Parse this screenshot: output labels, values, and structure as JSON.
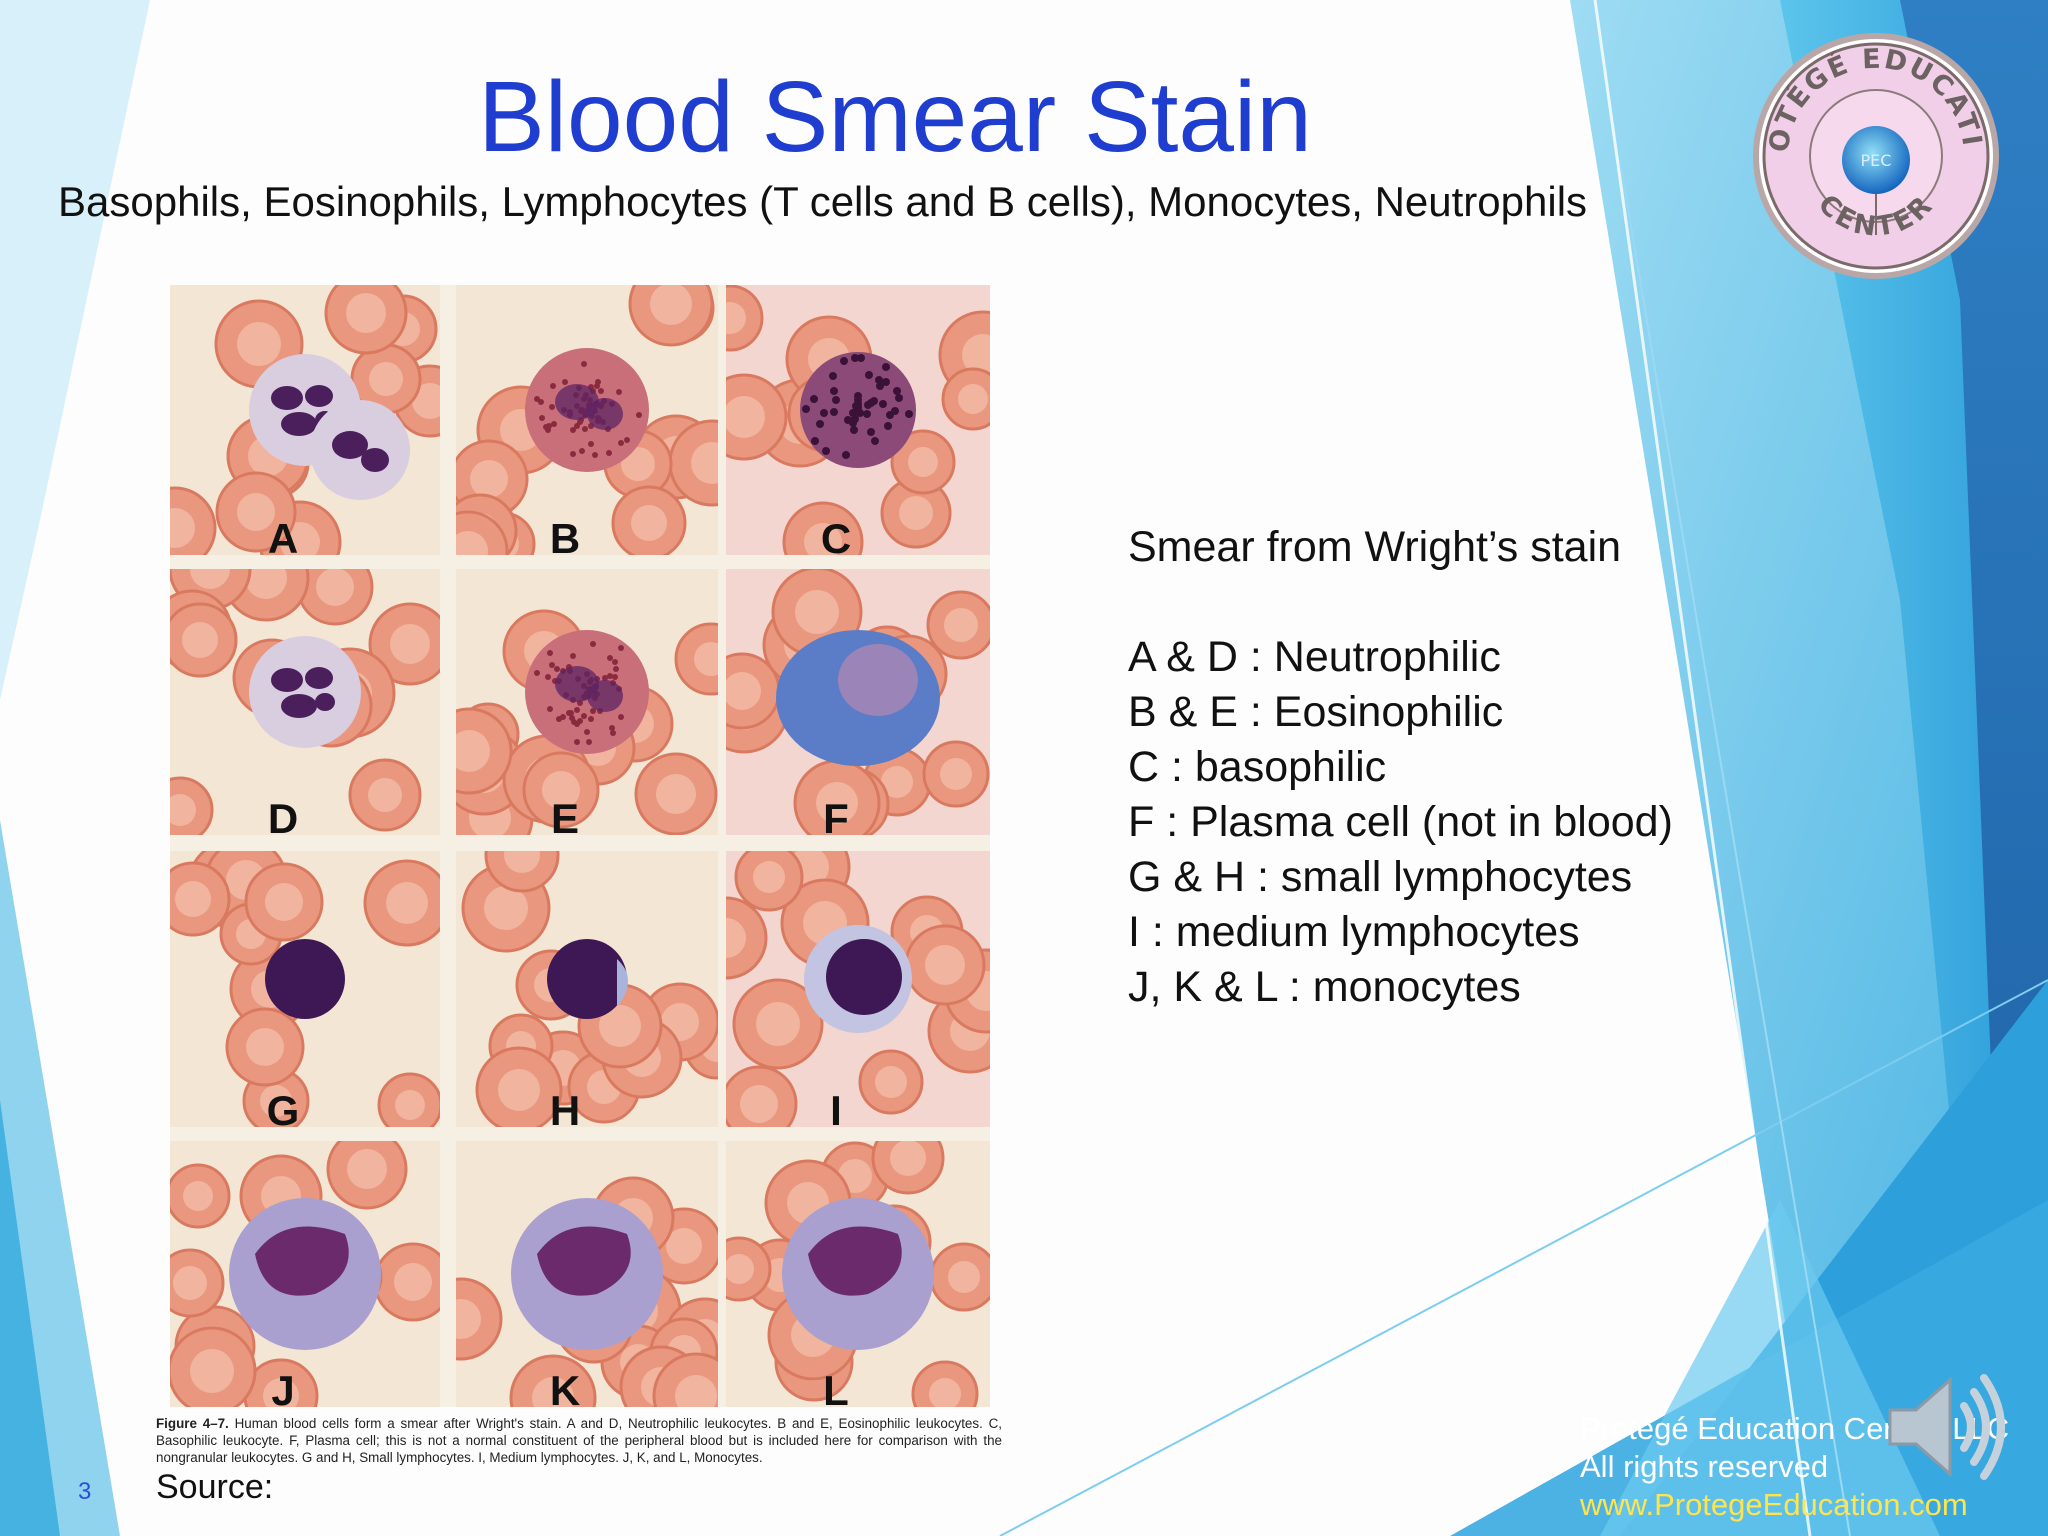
{
  "slide": {
    "title": "Blood Smear Stain",
    "subtitle": "Basophils, Eosinophils, Lymphocytes (T cells and B cells), Monocytes, Neutrophils",
    "page_number": "3",
    "source_label": "Source:"
  },
  "logo": {
    "top_text": "PROTÉGÉ EDUCATION",
    "bottom_text": "CENTER",
    "center_text": "PEC"
  },
  "figure": {
    "panels": [
      {
        "letter": "A"
      },
      {
        "letter": "B"
      },
      {
        "letter": "C"
      },
      {
        "letter": "D"
      },
      {
        "letter": "E"
      },
      {
        "letter": "F"
      },
      {
        "letter": "G"
      },
      {
        "letter": "H"
      },
      {
        "letter": "I"
      },
      {
        "letter": "J"
      },
      {
        "letter": "K"
      },
      {
        "letter": "L"
      }
    ],
    "caption_label": "Figure 4–7.",
    "caption": "Human blood cells form a smear after Wright's stain. A and D, Neutrophilic leukocytes. B and E, Eosinophilic leukocytes. C, Basophilic leukocyte. F, Plasma cell; this is not a normal constituent of the peripheral blood but is included here for comparison with the nongranular leukocytes. G and H, Small lymphocytes. I, Medium lymphocytes. J, K, and L, Monocytes."
  },
  "legend": {
    "heading": "Smear from Wright’s stain",
    "items": [
      "A & D : Neutrophilic",
      "B & E : Eosinophilic",
      "C : basophilic",
      "F : Plasma cell (not in blood)",
      "G & H : small lymphocytes",
      "I : medium lymphocytes",
      "J, K & L : monocytes"
    ]
  },
  "footer": {
    "company": "Protégé Education Center, LLC",
    "rights": "All rights reserved",
    "url": "www.ProtegeEducation.com"
  },
  "icons": {
    "speaker": "speaker-icon",
    "logo": "pec-logo"
  },
  "colors": {
    "title": "#1f3ecf",
    "footer_url": "#ffe44d",
    "background_accent": "#1e88c8"
  }
}
